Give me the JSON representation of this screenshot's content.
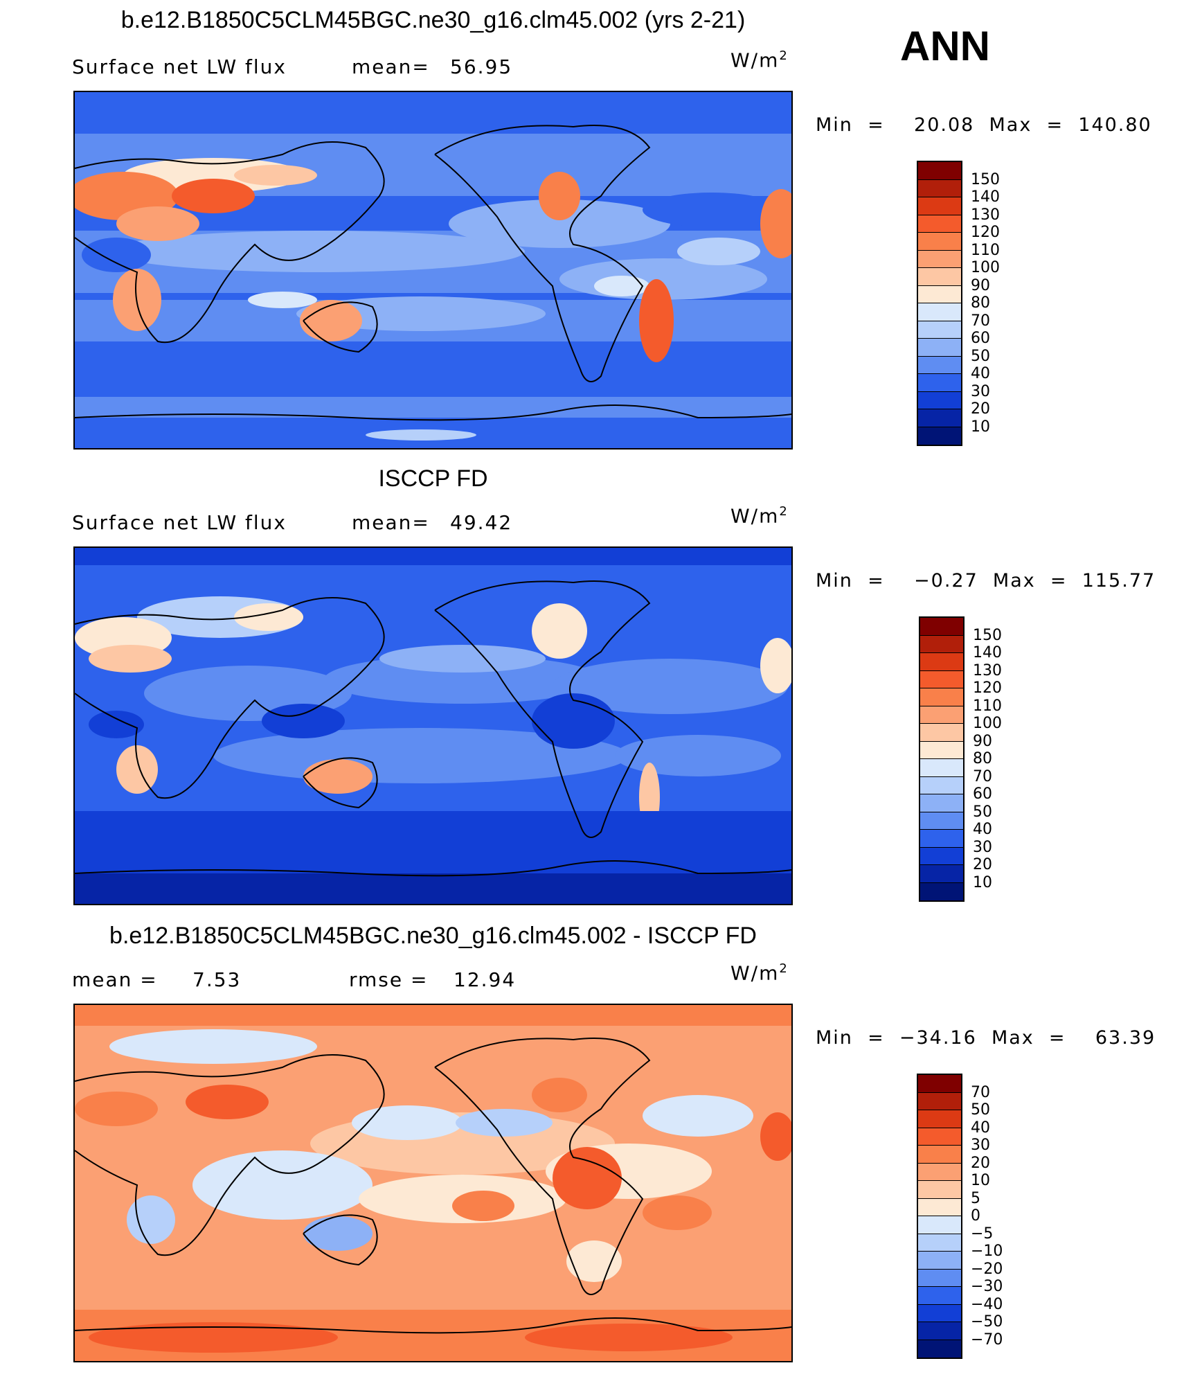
{
  "season": "ANN",
  "panels": [
    {
      "title": "b.e12.B1850C5CLM45BGC.ne30_g16.clm45.002 (yrs 2-21)",
      "left_label": "Surface  net  LW  flux",
      "stat_label": "mean=",
      "stat_value": "56.95",
      "unit": "W/m",
      "unit_exp": "2",
      "minmax": "Min  =    20.08  Max  =  140.80",
      "colorbar_labels": [
        "150",
        "140",
        "130",
        "120",
        "110",
        "100",
        "90",
        "80",
        "70",
        "60",
        "50",
        "40",
        "30",
        "20",
        "10"
      ],
      "colors": [
        "#7f0000",
        "#b11f0a",
        "#dc3a14",
        "#f45b2c",
        "#f9804a",
        "#fba073",
        "#fdc7a4",
        "#fde9d4",
        "#d9e8fb",
        "#b6d0fa",
        "#8db1f6",
        "#5f8df2",
        "#2e62ec",
        "#123fd6",
        "#0624a6",
        "#001476"
      ]
    },
    {
      "title": "ISCCP FD",
      "left_label": "Surface  net  LW  flux",
      "stat_label": "mean=",
      "stat_value": "49.42",
      "unit": "W/m",
      "unit_exp": "2",
      "minmax": "Min  =    −0.27  Max  =  115.77",
      "colorbar_labels": [
        "150",
        "140",
        "130",
        "120",
        "110",
        "100",
        "90",
        "80",
        "70",
        "60",
        "50",
        "40",
        "30",
        "20",
        "10"
      ],
      "colors": [
        "#7f0000",
        "#b11f0a",
        "#dc3a14",
        "#f45b2c",
        "#f9804a",
        "#fba073",
        "#fdc7a4",
        "#fde9d4",
        "#d9e8fb",
        "#b6d0fa",
        "#8db1f6",
        "#5f8df2",
        "#2e62ec",
        "#123fd6",
        "#0624a6",
        "#001476"
      ]
    },
    {
      "title": "b.e12.B1850C5CLM45BGC.ne30_g16.clm45.002 - ISCCP FD",
      "left_label": "mean  =",
      "left_value": "7.53",
      "stat_label": "rmse  =",
      "stat_value": "12.94",
      "unit": "W/m",
      "unit_exp": "2",
      "minmax": "Min  =  −34.16  Max  =    63.39",
      "colorbar_labels": [
        "70",
        "50",
        "40",
        "30",
        "20",
        "10",
        "5",
        "0",
        "−5",
        "−10",
        "−20",
        "−30",
        "−40",
        "−50",
        "−70"
      ],
      "colors": [
        "#7f0000",
        "#b11f0a",
        "#dc3a14",
        "#f45b2c",
        "#f9804a",
        "#fba073",
        "#fdc7a4",
        "#fde9d4",
        "#d9e8fb",
        "#b6d0fa",
        "#8db1f6",
        "#5f8df2",
        "#2e62ec",
        "#123fd6",
        "#0624a6",
        "#001476"
      ]
    }
  ]
}
